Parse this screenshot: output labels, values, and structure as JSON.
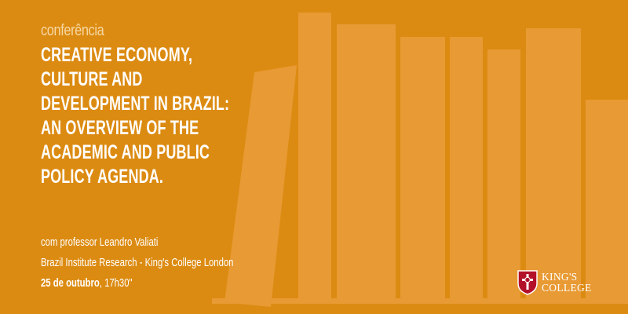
{
  "kicker": "conferência",
  "title_lines": [
    "CREATIVE ECONOMY,",
    "CULTURE AND",
    "DEVELOPMENT IN BRAZIL:",
    "AN OVERVIEW OF THE",
    "ACADEMIC AND PUBLIC",
    "POLICY AGENDA."
  ],
  "speaker": "com professor Leandro Valiati",
  "institution": "Brazil Institute Research - King's College London",
  "date": "25 de outubro",
  "time": ", 17h30\"",
  "logo": {
    "line1": "KING'S",
    "line2": "COLLEGE"
  },
  "colors": {
    "background": "#dc8b12",
    "books": "#e89a34",
    "kicker": "#f6d7a2",
    "text": "#ffffff",
    "shield_red": "#b3102a"
  }
}
